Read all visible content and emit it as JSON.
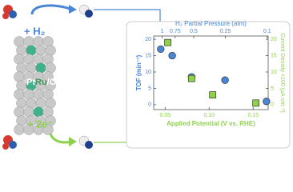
{
  "scheme": {
    "h2_label": "+ H₂",
    "electron_label": "+ 2e⁻",
    "catalyst_parts": [
      "Pt",
      "Ru",
      "/C"
    ]
  },
  "chart_data": {
    "type": "scatter",
    "x_label": "Applied Potential (V vs. RHE)",
    "x2_label": "H₂ Partial Pressure (atm)",
    "y_label": "TOF (min⁻¹)",
    "y2_label": "Current Density ×100 (µA·cm⁻²)",
    "xlim": [
      0.037,
      0.167
    ],
    "xticks": [
      {
        "value": 0.05,
        "label": "0.05"
      },
      {
        "value": 0.1,
        "label": "0.10"
      },
      {
        "value": 0.15,
        "label": "0.15"
      }
    ],
    "x2lim": [
      1.2,
      0.098
    ],
    "x2scale": "log",
    "x2ticks": [
      1,
      0.75,
      0.5,
      0.25,
      0.1
    ],
    "ylim": [
      -1.5,
      21
    ],
    "yticks": [
      0,
      5,
      10,
      15,
      20
    ],
    "y2lim": [
      -1.5,
      21
    ],
    "y2ticks": [
      0,
      5,
      10,
      15,
      20
    ],
    "series": [
      {
        "marker": "circle",
        "color": "#4a86d8",
        "axis": "y",
        "x": [
          0.045,
          0.058,
          0.08,
          0.118,
          0.165
        ],
        "values": [
          17,
          15,
          8.5,
          7.5,
          1
        ]
      },
      {
        "marker": "square",
        "color": "#8fd14f",
        "axis": "y2",
        "x": [
          0.053,
          0.08,
          0.104,
          0.153
        ],
        "values": [
          19,
          8,
          3,
          0.5
        ]
      }
    ]
  }
}
